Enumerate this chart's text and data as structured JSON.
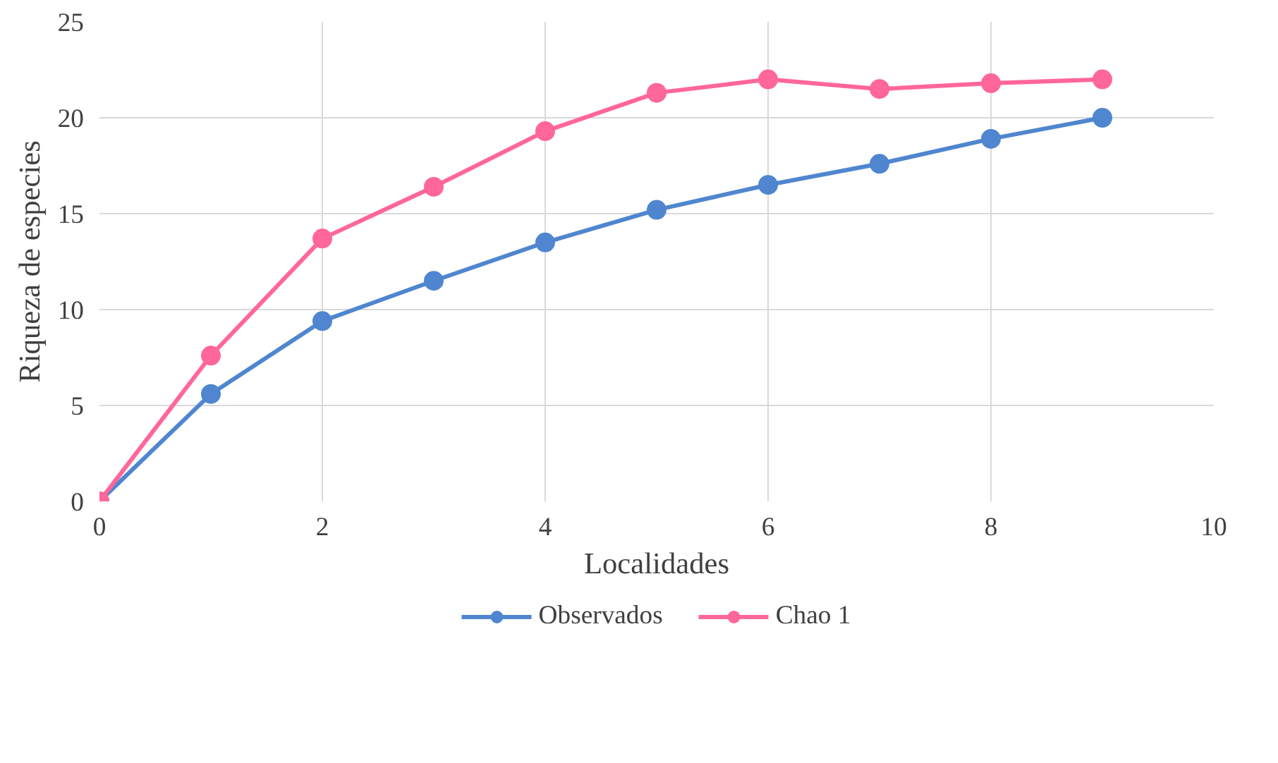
{
  "chart_data": {
    "type": "line",
    "xlabel": "Localidades",
    "ylabel": "Riqueza de especies",
    "xlim": [
      0,
      10
    ],
    "xticks": [
      0,
      2,
      4,
      6,
      8,
      10
    ],
    "ylim": [
      0,
      25
    ],
    "yticks": [
      0,
      5,
      10,
      15,
      20,
      25
    ],
    "grid": true,
    "legend": "bottom",
    "marker": "circle",
    "line_style": "solid",
    "series": [
      {
        "name": "Observados",
        "color": "#4f86cf",
        "x": [
          0,
          1,
          2,
          3,
          4,
          5,
          6,
          7,
          8,
          9
        ],
        "values": [
          0,
          5.6,
          9.4,
          11.5,
          13.5,
          15.2,
          16.5,
          17.6,
          18.9,
          20
        ]
      },
      {
        "name": "Chao 1",
        "color": "#ff6699",
        "x": [
          0,
          1,
          2,
          3,
          4,
          5,
          6,
          7,
          8,
          9
        ],
        "values": [
          0,
          7.6,
          13.7,
          16.4,
          19.3,
          21.3,
          22,
          21.5,
          21.8,
          22
        ]
      }
    ]
  }
}
